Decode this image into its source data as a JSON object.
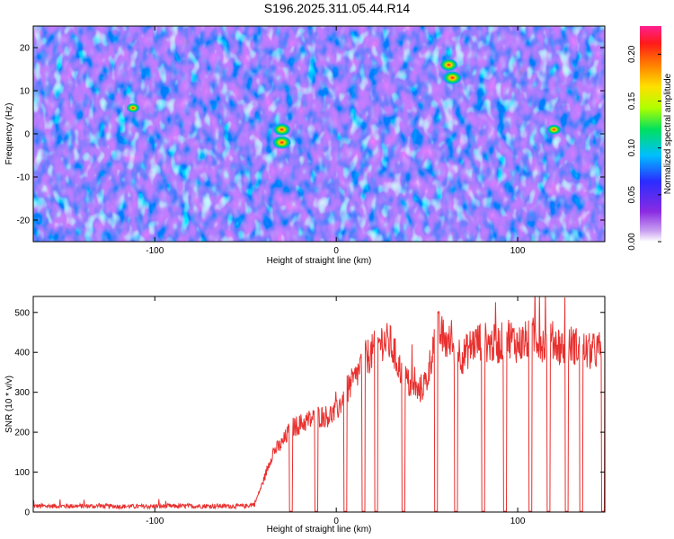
{
  "title": "S196.2025.311.05.44.R14",
  "colors": {
    "line": "#e8302e",
    "axis": "#000000",
    "colormap": [
      "#ffffff",
      "#8a2be2",
      "#0000ff",
      "#00bfff",
      "#00ff00",
      "#ffff00",
      "#ff8000",
      "#ff0000",
      "#ff1493"
    ]
  },
  "chart_data": [
    {
      "type": "heatmap",
      "name": "spectrogram",
      "xlabel": "Height of straight line (km)",
      "ylabel": "Frequency (Hz)",
      "xlim": [
        -167,
        148
      ],
      "ylim": [
        -25,
        25
      ],
      "xticks": [
        -100,
        0,
        100
      ],
      "xtick_labels": [
        "-100",
        "0",
        "100"
      ],
      "yticks": [
        -20,
        -10,
        0,
        10,
        20
      ],
      "ytick_labels": [
        "-20",
        "-10",
        "0",
        "10",
        "20"
      ],
      "colorbar": {
        "label": "Normalized spectral amplitude",
        "range": [
          0,
          0.23
        ],
        "ticks": [
          0,
          0.05,
          0.1,
          0.15,
          0.2
        ],
        "tick_labels": [
          "0.00",
          "0.05",
          "0.10",
          "0.15",
          "0.20"
        ]
      },
      "hotspots": [
        {
          "x": 62,
          "y": 16,
          "value": 0.2
        },
        {
          "x": 64,
          "y": 13,
          "value": 0.22
        },
        {
          "x": -30,
          "y": 1,
          "value": 0.2
        },
        {
          "x": -30,
          "y": -2,
          "value": 0.22
        },
        {
          "x": -112,
          "y": 6,
          "value": 0.12
        },
        {
          "x": 120,
          "y": 1,
          "value": 0.14
        }
      ]
    },
    {
      "type": "line",
      "name": "snr",
      "xlabel": "Height of straight line (km)",
      "ylabel": "SNR (10 * v/v)",
      "xlim": [
        -167,
        148
      ],
      "ylim": [
        0,
        540
      ],
      "xticks": [
        -100,
        0,
        100
      ],
      "xtick_labels": [
        "-100",
        "0",
        "100"
      ],
      "yticks": [
        0,
        100,
        200,
        300,
        400,
        500
      ],
      "ytick_labels": [
        "0",
        "100",
        "200",
        "300",
        "400",
        "500"
      ],
      "series": [
        {
          "name": "SNR",
          "x": [
            -167,
            -140,
            -110,
            -80,
            -50,
            -45,
            -40,
            -35,
            -30,
            -25,
            -20,
            -15,
            -10,
            -5,
            0,
            5,
            10,
            15,
            20,
            25,
            30,
            35,
            40,
            45,
            50,
            55,
            60,
            65,
            70,
            75,
            80,
            85,
            90,
            95,
            100,
            105,
            110,
            115,
            120,
            125,
            130,
            135,
            140,
            148
          ],
          "values": [
            15,
            15,
            14,
            15,
            15,
            20,
            80,
            150,
            170,
            210,
            220,
            230,
            240,
            240,
            250,
            300,
            330,
            380,
            400,
            430,
            420,
            360,
            320,
            300,
            330,
            460,
            430,
            410,
            390,
            420,
            430,
            420,
            420,
            440,
            420,
            430,
            440,
            420,
            430,
            410,
            420,
            410,
            400,
            410
          ]
        }
      ],
      "dropouts_x": [
        -25,
        -11,
        5,
        15,
        22,
        37,
        55,
        66,
        81,
        93,
        107,
        117,
        127,
        135,
        147
      ],
      "dropout_value": 2
    }
  ]
}
